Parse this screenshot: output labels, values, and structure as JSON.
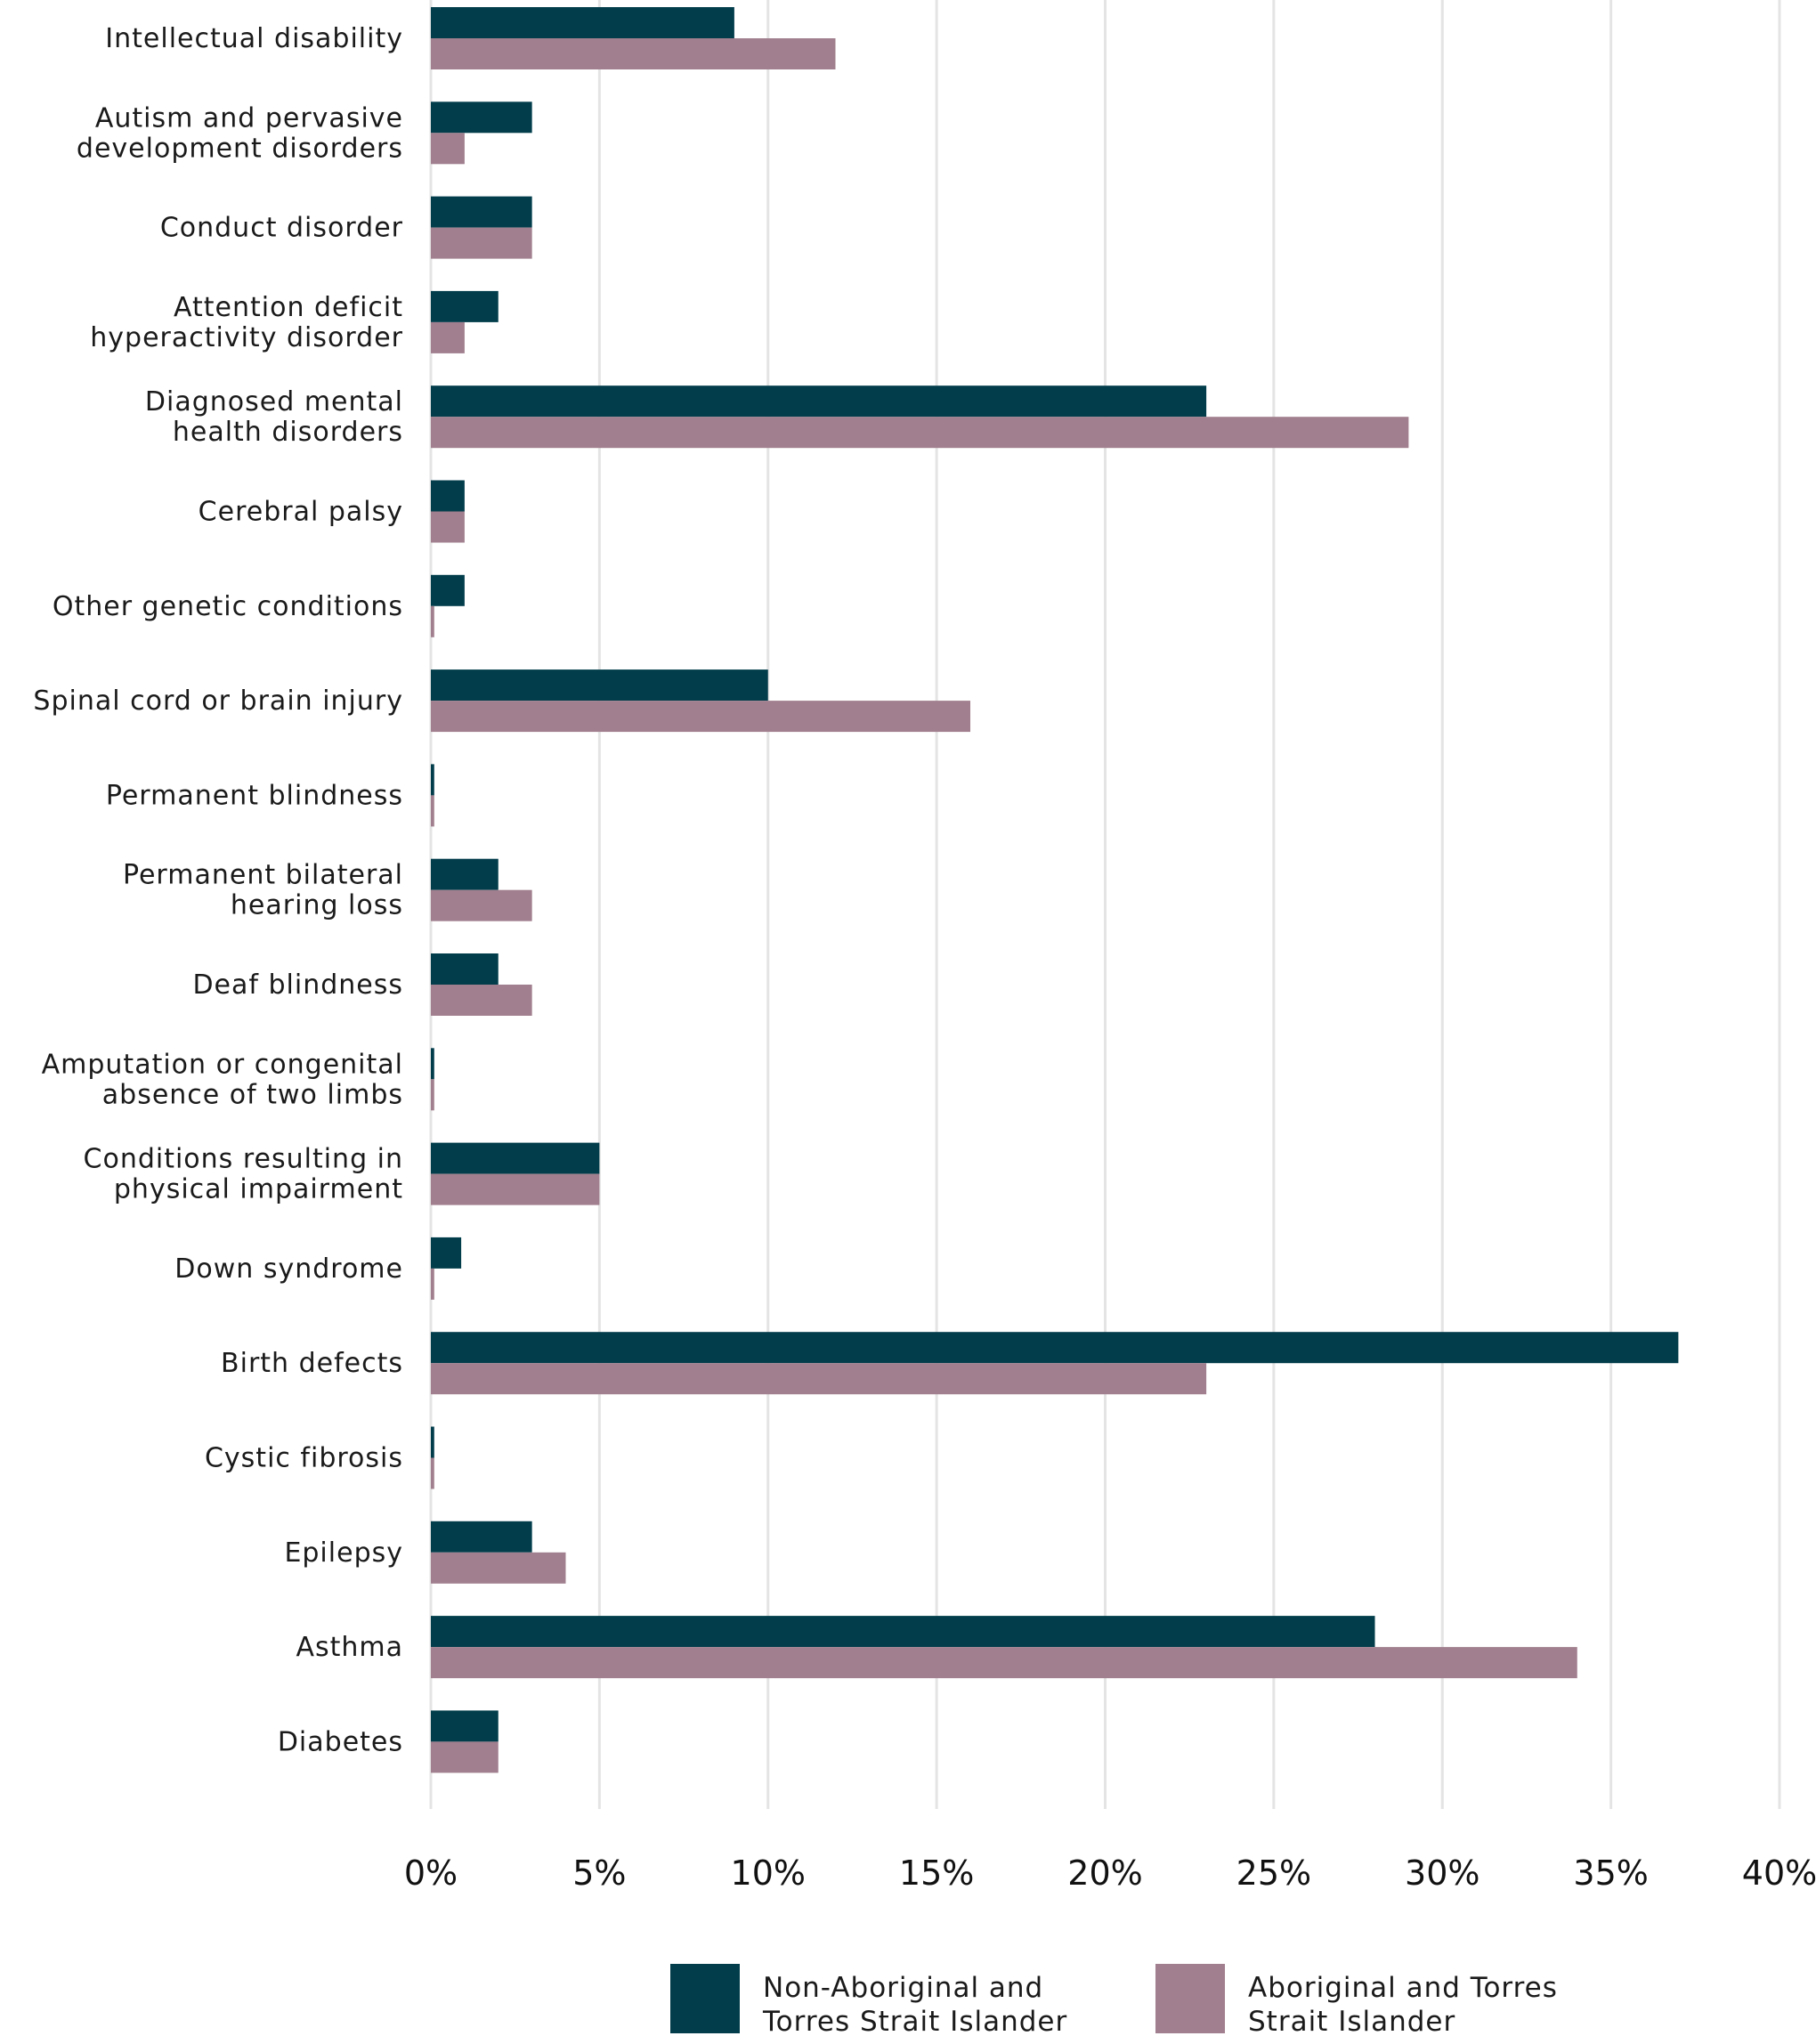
{
  "chart_data": {
    "type": "bar",
    "orientation": "horizontal",
    "categories": [
      [
        "Intellectual disability"
      ],
      [
        "Autism and pervasive",
        "development disorders"
      ],
      [
        "Conduct disorder"
      ],
      [
        "Attention deficit",
        "hyperactivity disorder"
      ],
      [
        "Diagnosed mental",
        "health disorders"
      ],
      [
        "Cerebral palsy"
      ],
      [
        "Other genetic conditions"
      ],
      [
        "Spinal cord or brain injury"
      ],
      [
        "Permanent blindness"
      ],
      [
        "Permanent bilateral",
        "hearing loss"
      ],
      [
        "Deaf blindness"
      ],
      [
        "Amputation or congenital",
        "absence of two limbs"
      ],
      [
        "Conditions resulting in",
        "physical impairment"
      ],
      [
        "Down syndrome"
      ],
      [
        "Birth defects"
      ],
      [
        "Cystic fibrosis"
      ],
      [
        "Epilepsy"
      ],
      [
        "Asthma"
      ],
      [
        "Diabetes"
      ]
    ],
    "series": [
      {
        "name": "Non-Aboriginal and Torres Strait Islander",
        "name_lines": [
          "Non-Aboriginal and",
          "Torres Strait Islander"
        ],
        "color": "#023d4b",
        "values": [
          9,
          3,
          3,
          2,
          23,
          1,
          1,
          10,
          0.1,
          2,
          2,
          0.1,
          5,
          0.9,
          37,
          0.1,
          3,
          28,
          2
        ]
      },
      {
        "name": "Aboriginal and Torres Strait Islander",
        "name_lines": [
          "Aboriginal and Torres",
          "Strait Islander"
        ],
        "color": "#a17f8e",
        "values": [
          12,
          1,
          3,
          1,
          29,
          1,
          0.1,
          16,
          0.1,
          3,
          3,
          0.1,
          5,
          0.1,
          23,
          0.1,
          4,
          34,
          2
        ]
      }
    ],
    "xlim": [
      0,
      40
    ],
    "xticks": [
      0,
      5,
      10,
      15,
      20,
      25,
      30,
      35,
      40
    ],
    "tick_suffix": "%",
    "xlabel": "",
    "ylabel": "",
    "grid": true,
    "legend_position": "bottom"
  }
}
